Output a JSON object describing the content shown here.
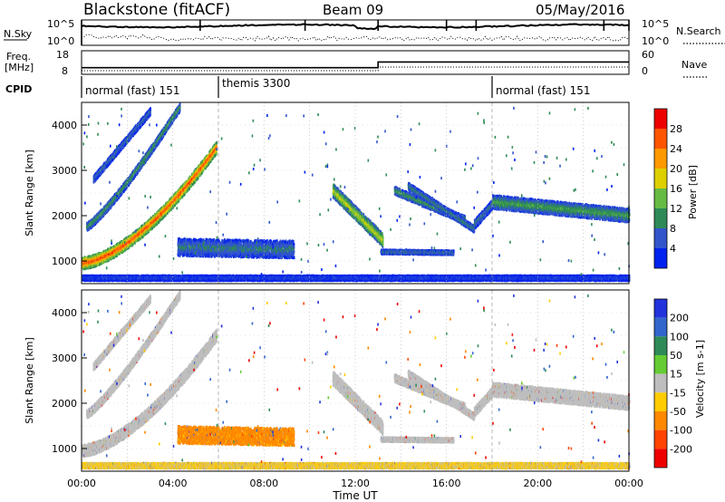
{
  "header": {
    "radar": "Blackstone (fitACF)",
    "beam": "Beam 09",
    "date": "05/May/2016"
  },
  "sky_panel": {
    "left_label": "N.Sky",
    "right_label": "N.Search",
    "top_tick": "10^5",
    "bottom_tick": "10^0"
  },
  "freq_panel": {
    "left_label_line1": "Freq.",
    "left_label_line2": "[MHz]",
    "left_ticks": [
      "18",
      "8"
    ],
    "right_label": "Nave",
    "right_ticks": [
      "60",
      "0"
    ],
    "freq_step_time": 13.0,
    "freq_before": 10.8,
    "freq_after": 13.2
  },
  "cpid": {
    "label": "CPID",
    "segments": [
      {
        "text": "normal (fast) 151",
        "start": 0,
        "end": 6
      },
      {
        "text": "themis 3300",
        "start": 6,
        "end": 18
      },
      {
        "text": "normal (fast) 151",
        "start": 18,
        "end": 24
      }
    ]
  },
  "chart_data": [
    {
      "type": "heatmap",
      "title": "",
      "quantity": "Power",
      "xlabel": "Time UT",
      "ylabel": "Slant Range [km]",
      "xlim": [
        0,
        24
      ],
      "ylim": [
        500,
        4500
      ],
      "x_ticks": [
        "00:00",
        "04:00",
        "08:00",
        "12:00",
        "16:00",
        "20:00",
        "00:00"
      ],
      "y_ticks": [
        "1000",
        "2000",
        "3000",
        "4000"
      ],
      "colorbar_label": "Power [dB]",
      "colorbar_ticks": [
        "4",
        "8",
        "12",
        "16",
        "20",
        "24",
        "28"
      ],
      "colorbar_range": [
        0,
        32
      ],
      "colors": [
        "#0022ee",
        "#3355cc",
        "#2e8b57",
        "#66bb44",
        "#ddd000",
        "#ff9900",
        "#ff5500",
        "#ee0000"
      ]
    },
    {
      "type": "heatmap",
      "title": "",
      "quantity": "Velocity",
      "xlabel": "Time UT",
      "ylabel": "Slant Range [km]",
      "xlim": [
        0,
        24
      ],
      "ylim": [
        500,
        4500
      ],
      "x_ticks": [
        "00:00",
        "04:00",
        "08:00",
        "12:00",
        "16:00",
        "20:00",
        "00:00"
      ],
      "y_ticks": [
        "1000",
        "2000",
        "3000",
        "4000"
      ],
      "colorbar_label": "Velocity [m s-1]",
      "colorbar_ticks": [
        "200",
        "100",
        "50",
        "15",
        "-15",
        "-50",
        "-100",
        "-200"
      ],
      "colors": [
        "#2233dd",
        "#3366cc",
        "#2e8b57",
        "#66cc33",
        "#bebebe",
        "#ffcc00",
        "#ff8800",
        "#ff4400",
        "#ee0000"
      ]
    }
  ],
  "bands": [
    {
      "name": "early-arc-lower",
      "t0": 0.0,
      "t1": 5.9,
      "r0": 950,
      "r1": 3500,
      "curve": 1.6,
      "thick": 260,
      "power": 28,
      "vel": 0
    },
    {
      "name": "early-arc-upper",
      "t0": 0.2,
      "t1": 4.3,
      "r0": 1750,
      "r1": 4400,
      "curve": 1.2,
      "thick": 180,
      "power": 12,
      "vel": 0
    },
    {
      "name": "early-arc-far",
      "t0": 0.5,
      "t1": 3.0,
      "r0": 2800,
      "r1": 4300,
      "curve": 1.0,
      "thick": 150,
      "power": 8,
      "vel": 0
    },
    {
      "name": "mid-patch",
      "t0": 4.2,
      "t1": 9.3,
      "r0": 1300,
      "r1": 1250,
      "curve": 1.0,
      "thick": 380,
      "power": 9,
      "vel": -60
    },
    {
      "name": "noon-arc",
      "t0": 11.0,
      "t1": 13.2,
      "r0": 2550,
      "r1": 1450,
      "curve": 1.0,
      "thick": 300,
      "power": 18,
      "vel": 0
    },
    {
      "name": "noon-arc-tail",
      "t0": 13.1,
      "t1": 16.3,
      "r0": 1200,
      "r1": 1180,
      "curve": 1.0,
      "thick": 90,
      "power": 9,
      "vel": 0
    },
    {
      "name": "pm-arc-1",
      "t0": 13.7,
      "t1": 16.8,
      "r0": 2550,
      "r1": 1900,
      "curve": 1.0,
      "thick": 170,
      "power": 12,
      "vel": 0
    },
    {
      "name": "pm-arc-2",
      "t0": 14.3,
      "t1": 17.2,
      "r0": 2650,
      "r1": 1700,
      "curve": 1.0,
      "thick": 140,
      "power": 10,
      "vel": 0
    },
    {
      "name": "pm-arc-3",
      "t0": 17.2,
      "t1": 18.0,
      "r0": 1800,
      "r1": 2250,
      "curve": 1.0,
      "thick": 200,
      "power": 9,
      "vel": 0
    },
    {
      "name": "evening-band",
      "t0": 18.0,
      "t1": 24.0,
      "r0": 2300,
      "r1": 2000,
      "curve": 1.0,
      "thick": 300,
      "power": 12,
      "vel": 0
    },
    {
      "name": "ground-scatter",
      "t0": 0.0,
      "t1": 24.0,
      "r0": 620,
      "r1": 620,
      "curve": 1.0,
      "thick": 110,
      "power": 5,
      "vel": -20
    }
  ]
}
